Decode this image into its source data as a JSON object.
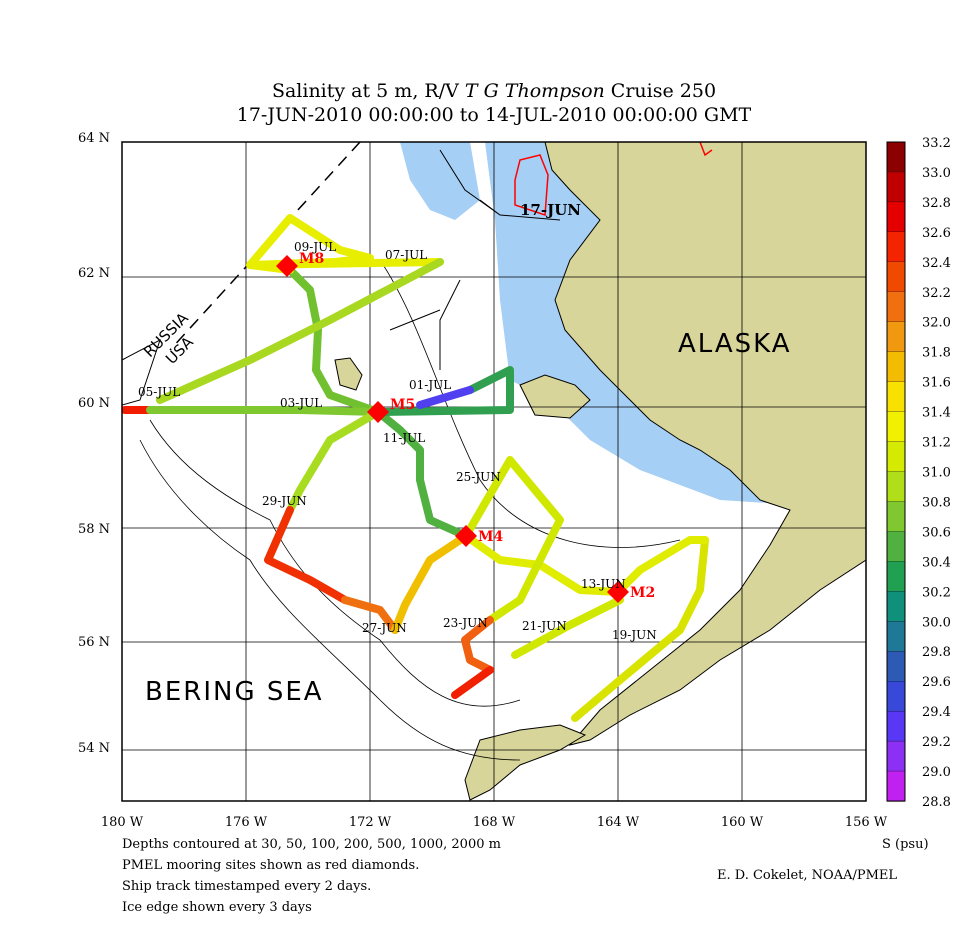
{
  "title": {
    "parts": [
      "Salinity at 5 m, R/V ",
      "T G",
      " Thompson",
      " Cruise 250"
    ],
    "subtitle": "17-JUN-2010 00:00:00 to 14-JUL-2010 00:00:00 GMT"
  },
  "lat_labels": [
    "64 N",
    "62 N",
    "60 N",
    "58 N",
    "56 N",
    "54 N"
  ],
  "lon_labels": [
    "180 W",
    "176 W",
    "172 W",
    "168 W",
    "164 W",
    "160 W",
    "156 W"
  ],
  "colorbar": {
    "labels": [
      "33.2",
      "33.0",
      "32.8",
      "32.6",
      "32.4",
      "32.2",
      "32.0",
      "31.8",
      "31.6",
      "31.4",
      "31.2",
      "31.0",
      "30.8",
      "30.6",
      "30.4",
      "30.2",
      "30.0",
      "29.8",
      "29.6",
      "29.4",
      "29.2",
      "29.0",
      "28.8"
    ],
    "unit": "S (psu)"
  },
  "places": [
    "ALASKA",
    "BERING SEA"
  ],
  "border": [
    "RUSSIA",
    "USA"
  ],
  "moorings": [
    "M8",
    "M5",
    "M4",
    "M2"
  ],
  "timestamps": [
    "17-JUN",
    "07-JUL",
    "09-JUL",
    "05-JUL",
    "03-JUL",
    "01-JUL",
    "11-JUL",
    "25-JUN",
    "29-JUN",
    "27-JUN",
    "23-JUN",
    "21-JUN",
    "13-JUN",
    "19-JUN"
  ],
  "footnotes": [
    "Depths contoured at 30, 50, 100, 200, 500, 1000, 2000 m",
    "PMEL mooring sites shown as red diamonds.",
    "Ship track timestamped every 2 days.",
    "Ice edge shown every 3 days"
  ],
  "credit": "E. D. Cokelet, NOAA/PMEL"
}
